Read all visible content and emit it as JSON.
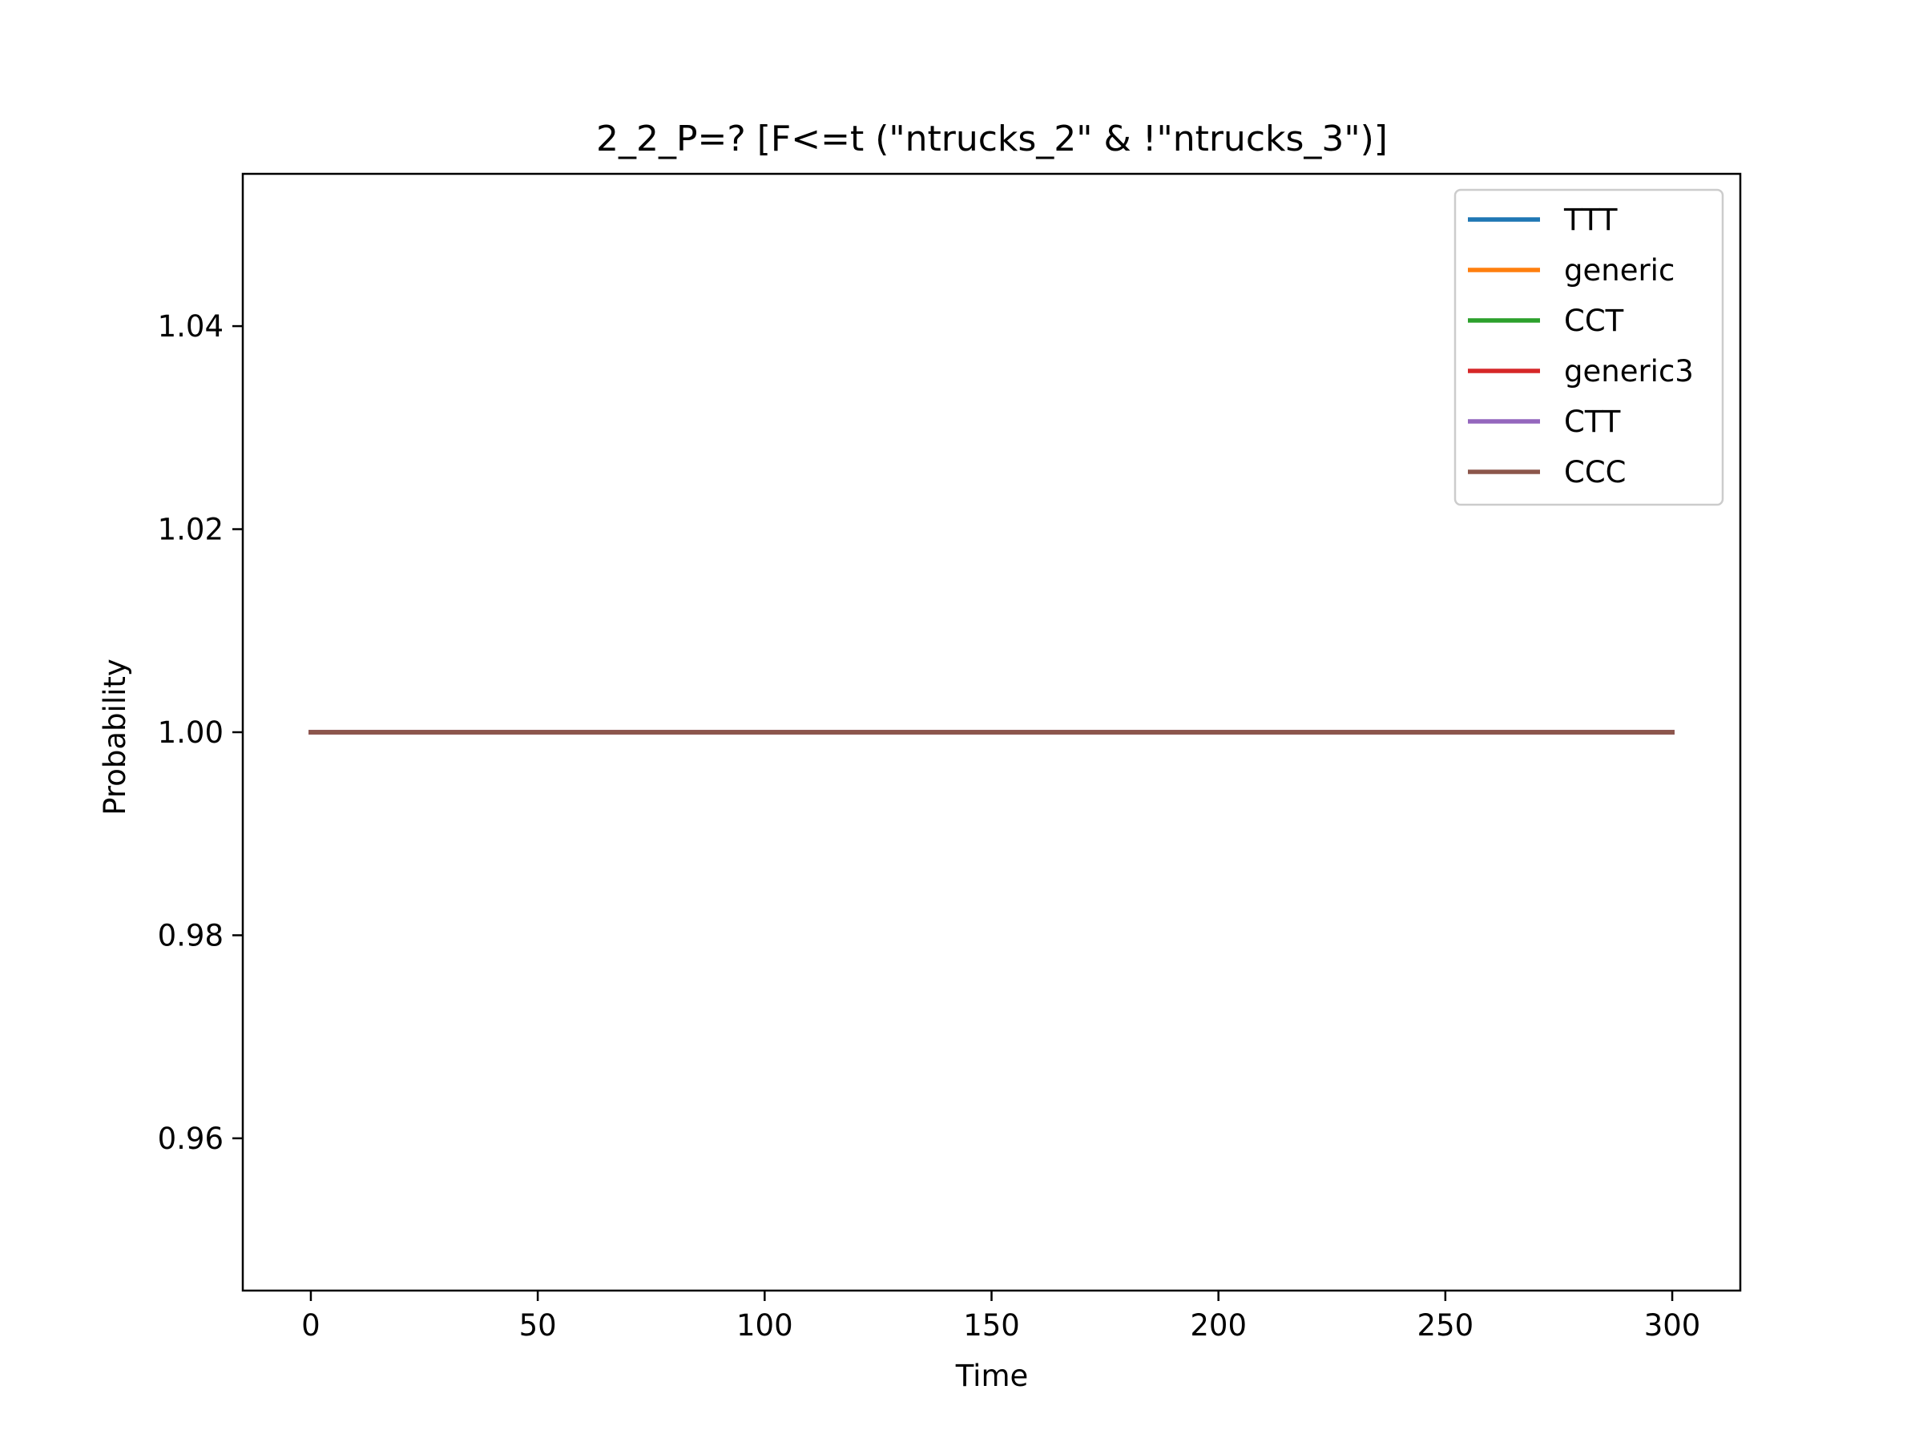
{
  "chart_data": {
    "type": "line",
    "title": "2_2_P=? [F<=t (\"ntrucks_2\" & !\"ntrucks_3\")]",
    "xlabel": "Time",
    "ylabel": "Probability",
    "xlim": [
      -15,
      315
    ],
    "ylim": [
      0.945,
      1.055
    ],
    "xticks": [
      0,
      50,
      100,
      150,
      200,
      250,
      300
    ],
    "xtick_labels": [
      "0",
      "50",
      "100",
      "150",
      "200",
      "250",
      "300"
    ],
    "yticks": [
      0.96,
      0.98,
      1.0,
      1.02,
      1.04
    ],
    "ytick_labels": [
      "0.96",
      "0.98",
      "1.00",
      "1.02",
      "1.04"
    ],
    "grid": false,
    "legend_position": "top-right",
    "x": [
      0,
      300
    ],
    "series": [
      {
        "name": "TTT",
        "color": "#1f77b4",
        "values": [
          1.0,
          1.0
        ]
      },
      {
        "name": "generic",
        "color": "#ff7f0e",
        "values": [
          1.0,
          1.0
        ]
      },
      {
        "name": "CCT",
        "color": "#2ca02c",
        "values": [
          1.0,
          1.0
        ]
      },
      {
        "name": "generic3",
        "color": "#d62728",
        "values": [
          1.0,
          1.0
        ]
      },
      {
        "name": "CTT",
        "color": "#9467bd",
        "values": [
          1.0,
          1.0
        ]
      },
      {
        "name": "CCC",
        "color": "#8c564b",
        "values": [
          1.0,
          1.0
        ]
      }
    ]
  }
}
